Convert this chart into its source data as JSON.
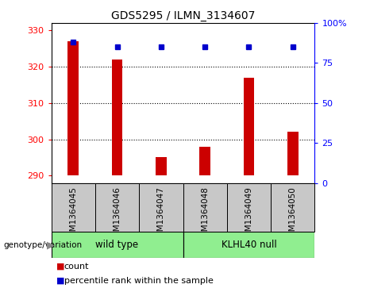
{
  "title": "GDS5295 / ILMN_3134607",
  "samples": [
    "GSM1364045",
    "GSM1364046",
    "GSM1364047",
    "GSM1364048",
    "GSM1364049",
    "GSM1364050"
  ],
  "counts": [
    327,
    322,
    295,
    298,
    317,
    302
  ],
  "percentiles": [
    88,
    85,
    85,
    85,
    85,
    85
  ],
  "ylim_left": [
    288,
    332
  ],
  "ylim_right": [
    0,
    100
  ],
  "yticks_left": [
    290,
    300,
    310,
    320,
    330
  ],
  "yticks_right": [
    0,
    25,
    50,
    75,
    100
  ],
  "ytick_labels_right": [
    "0",
    "25",
    "50",
    "75",
    "100%"
  ],
  "groups": [
    {
      "label": "wild type",
      "indices": [
        0,
        1,
        2
      ],
      "color": "#90EE90"
    },
    {
      "label": "KLHL40 null",
      "indices": [
        3,
        4,
        5
      ],
      "color": "#90EE90"
    }
  ],
  "bar_color": "#CC0000",
  "dot_color": "#0000CC",
  "bar_bottom": 290,
  "tick_area_color": "#C8C8C8",
  "legend_label_bar": "count",
  "legend_label_dot": "percentile rank within the sample",
  "genotype_label": "genotype/variation",
  "bar_width": 0.25
}
